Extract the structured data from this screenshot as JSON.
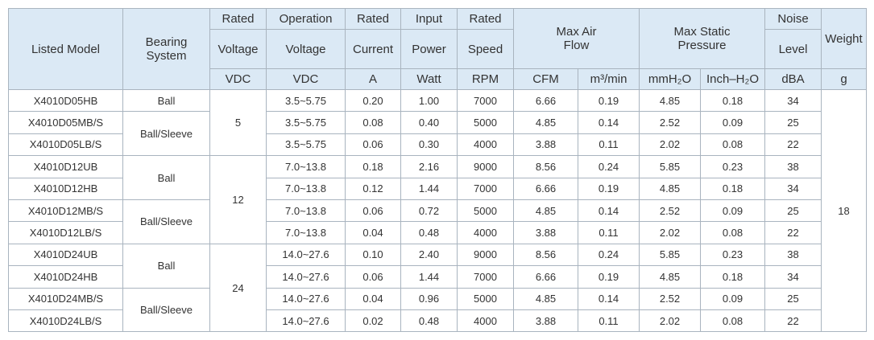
{
  "header": {
    "listed_model": "Listed Model",
    "bearing_system": "Bearing System",
    "rated_voltage": [
      "Rated",
      "Voltage",
      "VDC"
    ],
    "operation_voltage": [
      "Operation",
      "Voltage",
      "VDC"
    ],
    "rated_current": [
      "Rated",
      "Current",
      "A"
    ],
    "input_power": [
      "Input",
      "Power",
      "Watt"
    ],
    "rated_speed": [
      "Rated",
      "Speed",
      "RPM"
    ],
    "max_air_flow": "Max Air Flow",
    "air_flow_units": [
      "CFM",
      "m³/min"
    ],
    "max_static_pressure": "Max Static Pressure",
    "pressure_units": [
      "mmH₂O",
      "Inch–H₂O"
    ],
    "noise_level": [
      "Noise",
      "Level",
      "dBA"
    ],
    "weight": "Weight",
    "weight_unit": "g"
  },
  "table": {
    "weight": "18",
    "voltage_groups": [
      {
        "voltage": "5",
        "bearing_groups": [
          {
            "bearing": "Ball",
            "models": [
              [
                "X4010D05HB",
                "3.5~5.75",
                "0.20",
                "1.00",
                "7000",
                "6.66",
                "0.19",
                "4.85",
                "0.18",
                "34"
              ]
            ]
          },
          {
            "bearing": "Ball/Sleeve",
            "models": [
              [
                "X4010D05MB/S",
                "3.5~5.75",
                "0.08",
                "0.40",
                "5000",
                "4.85",
                "0.14",
                "2.52",
                "0.09",
                "25"
              ],
              [
                "X4010D05LB/S",
                "3.5~5.75",
                "0.06",
                "0.30",
                "4000",
                "3.88",
                "0.11",
                "2.02",
                "0.08",
                "22"
              ]
            ]
          }
        ]
      },
      {
        "voltage": "12",
        "bearing_groups": [
          {
            "bearing": "Ball",
            "models": [
              [
                "X4010D12UB",
                "7.0~13.8",
                "0.18",
                "2.16",
                "9000",
                "8.56",
                "0.24",
                "5.85",
                "0.23",
                "38"
              ],
              [
                "X4010D12HB",
                "7.0~13.8",
                "0.12",
                "1.44",
                "7000",
                "6.66",
                "0.19",
                "4.85",
                "0.18",
                "34"
              ]
            ]
          },
          {
            "bearing": "Ball/Sleeve",
            "models": [
              [
                "X4010D12MB/S",
                "7.0~13.8",
                "0.06",
                "0.72",
                "5000",
                "4.85",
                "0.14",
                "2.52",
                "0.09",
                "25"
              ],
              [
                "X4010D12LB/S",
                "7.0~13.8",
                "0.04",
                "0.48",
                "4000",
                "3.88",
                "0.11",
                "2.02",
                "0.08",
                "22"
              ]
            ]
          }
        ]
      },
      {
        "voltage": "24",
        "bearing_groups": [
          {
            "bearing": "Ball",
            "models": [
              [
                "X4010D24UB",
                "14.0~27.6",
                "0.10",
                "2.40",
                "9000",
                "8.56",
                "0.24",
                "5.85",
                "0.23",
                "38"
              ],
              [
                "X4010D24HB",
                "14.0~27.6",
                "0.06",
                "1.44",
                "7000",
                "6.66",
                "0.19",
                "4.85",
                "0.18",
                "34"
              ]
            ]
          },
          {
            "bearing": "Ball/Sleeve",
            "models": [
              [
                "X4010D24MB/S",
                "14.0~27.6",
                "0.04",
                "0.96",
                "5000",
                "4.85",
                "0.14",
                "2.52",
                "0.09",
                "25"
              ],
              [
                "X4010D24LB/S",
                "14.0~27.6",
                "0.02",
                "0.48",
                "4000",
                "3.88",
                "0.11",
                "2.02",
                "0.08",
                "22"
              ]
            ]
          }
        ]
      }
    ]
  }
}
